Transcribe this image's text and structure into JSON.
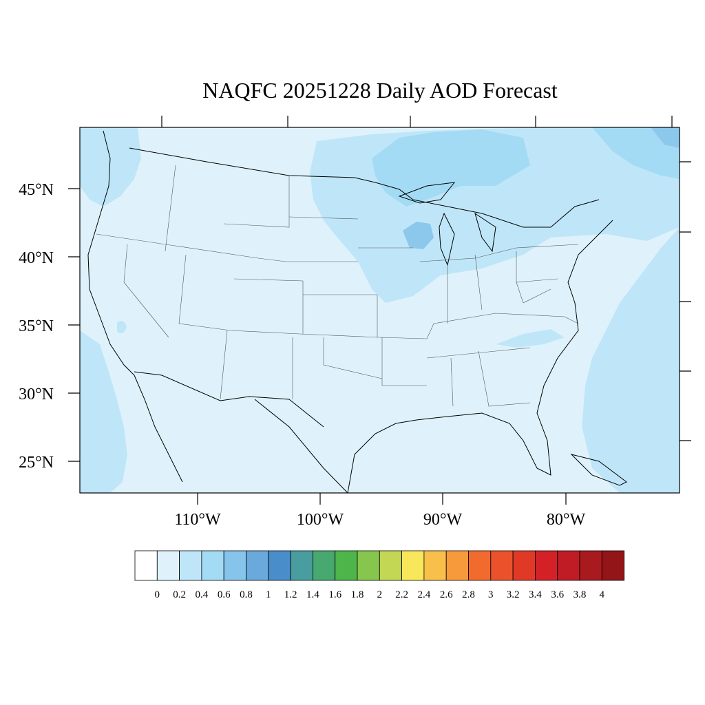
{
  "title": "NAQFC 20251228 Daily AOD Forecast",
  "map": {
    "lat_labels": [
      "45°N",
      "40°N",
      "35°N",
      "30°N",
      "25°N"
    ],
    "lon_labels": [
      "110°W",
      "100°W",
      "90°W",
      "80°W"
    ],
    "field_colors": {
      "background": "#dff2fb",
      "level_0_2": "#bfe6f8",
      "level_0_4": "#a3dbf5",
      "level_0_6": "#8cc7ec"
    }
  },
  "colorbar": {
    "labels": [
      "0",
      "0.2",
      "0.4",
      "0.6",
      "0.8",
      "1",
      "1.2",
      "1.4",
      "1.6",
      "1.8",
      "2",
      "2.2",
      "2.4",
      "2.6",
      "2.8",
      "3",
      "3.2",
      "3.4",
      "3.6",
      "3.8",
      "4"
    ],
    "colors": [
      "#ffffff",
      "#dff2fb",
      "#bfe6f8",
      "#a3dbf5",
      "#87c4eb",
      "#69a9dc",
      "#4a8dcb",
      "#4a9d9e",
      "#47a870",
      "#4db54a",
      "#86c64e",
      "#c4d754",
      "#f8e75a",
      "#f8c04a",
      "#f79a3c",
      "#f26b2e",
      "#ea522b",
      "#e03a27",
      "#d42128",
      "#bf1c26",
      "#a91a1e",
      "#931518"
    ]
  }
}
